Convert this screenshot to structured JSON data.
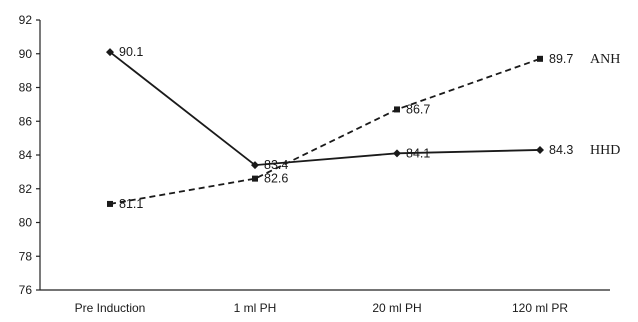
{
  "chart_data": {
    "type": "line",
    "categories": [
      "Pre Induction",
      "1 ml PH",
      "20 ml PH",
      "120 ml PR"
    ],
    "ylim": [
      76,
      92
    ],
    "yticks": [
      76,
      78,
      80,
      82,
      84,
      86,
      88,
      90,
      92
    ],
    "grid": false,
    "series": [
      {
        "name": "HHD",
        "line_style": "solid",
        "marker": "diamond",
        "color": "#1a1a1a",
        "values": [
          90.1,
          83.4,
          84.1,
          84.3
        ],
        "labels": [
          "90.1",
          "83.4",
          "84.1",
          "84.3"
        ]
      },
      {
        "name": "ANH",
        "line_style": "dashed",
        "marker": "square",
        "color": "#1a1a1a",
        "values": [
          81.1,
          82.6,
          86.7,
          89.7
        ],
        "labels": [
          "81.1",
          "82.6",
          "86.7",
          "89.7"
        ]
      }
    ]
  }
}
